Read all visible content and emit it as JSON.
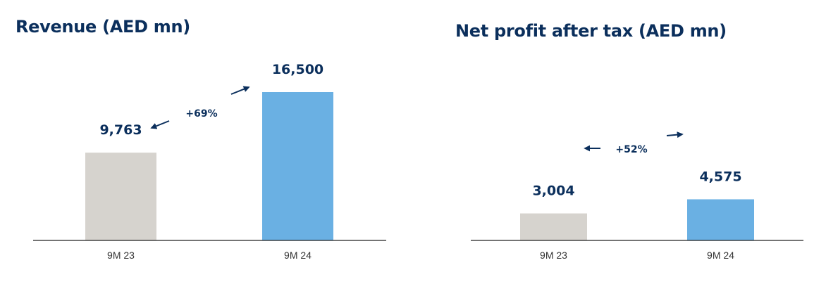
{
  "colors": {
    "title": "#0b2f5c",
    "bar_prior": "#d6d3ce",
    "bar_current": "#6ab0e3",
    "axis": "#222222",
    "arrow": "#0b2f5c",
    "tick": "#333333"
  },
  "chart_data": [
    {
      "type": "bar",
      "title": "Revenue (AED mn)",
      "categories": [
        "9M 23",
        "9M 24"
      ],
      "values": [
        9763,
        16500
      ],
      "value_labels": [
        "9,763",
        "16,500"
      ],
      "change_label": "+69%",
      "xlabel": "",
      "ylabel": "",
      "ylim": [
        0,
        18000
      ],
      "grid": false
    },
    {
      "type": "bar",
      "title": "Net profit after tax (AED mn)",
      "categories": [
        "9M 23",
        "9M 24"
      ],
      "values": [
        3004,
        4575
      ],
      "value_labels": [
        "3,004",
        "4,575"
      ],
      "change_label": "+52%",
      "xlabel": "",
      "ylabel": "",
      "ylim": [
        0,
        18000
      ],
      "grid": false
    }
  ]
}
